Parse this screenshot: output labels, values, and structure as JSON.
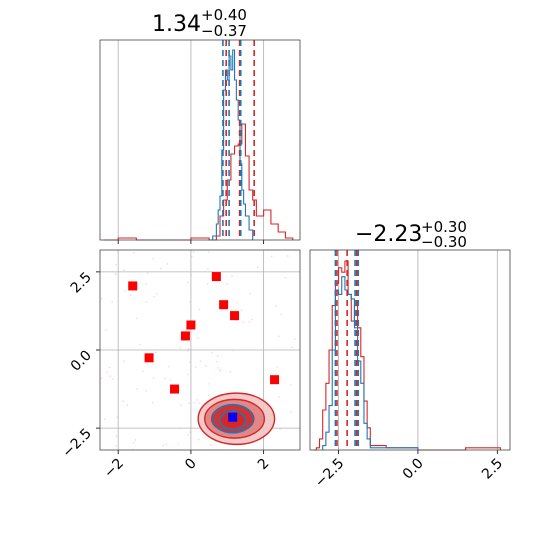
{
  "chart_data": {
    "type": "corner",
    "parameters": 2,
    "colors": {
      "primary": "#d62728",
      "secondary": "#1f77b4",
      "marker_red": "#ff0000",
      "marker_blue": "#0000ff",
      "grid": "#b0b0b0",
      "fill_light": "#f2c4c4",
      "fill_mid": "#e07f80",
      "fill_dark": "#d62728"
    },
    "panels": [
      {
        "id": "hist_param1",
        "type": "histogram",
        "title": {
          "value": "1.34",
          "upper": "+0.40",
          "lower": "−0.37"
        },
        "xlim": [
          -2.5,
          3.0
        ],
        "grid_x": [
          -2,
          0,
          2
        ],
        "quantile_lines_red": [
          0.97,
          1.34,
          1.74
        ],
        "quantile_lines_blue": [
          0.88,
          1.05,
          1.37
        ],
        "series": [
          {
            "color": "primary",
            "x": [
              -2.4,
              -2.0,
              -1.5,
              -1.0,
              -0.5,
              0.0,
              0.2,
              0.5,
              0.7,
              0.8,
              0.9,
              1.0,
              1.1,
              1.2,
              1.3,
              1.4,
              1.5,
              1.6,
              1.7,
              1.8,
              2.0,
              2.2,
              2.4,
              2.6,
              2.8
            ],
            "y": [
              0.0,
              0.01,
              0.0,
              0.0,
              0.0,
              0.01,
              0.01,
              0.0,
              0.02,
              0.12,
              0.2,
              0.3,
              0.43,
              0.47,
              0.48,
              0.58,
              0.42,
              0.25,
              0.2,
              0.12,
              0.15,
              0.08,
              0.04,
              0.01,
              0.0
            ]
          },
          {
            "color": "secondary",
            "x": [
              0.5,
              0.6,
              0.7,
              0.75,
              0.8,
              0.85,
              0.9,
              0.95,
              1.0,
              1.05,
              1.1,
              1.15,
              1.2,
              1.25,
              1.3,
              1.35,
              1.4,
              1.45,
              1.5,
              1.6,
              1.7
            ],
            "y": [
              0.0,
              0.02,
              0.08,
              0.15,
              0.22,
              0.45,
              0.75,
              0.85,
              0.8,
              0.92,
              0.85,
              0.95,
              0.8,
              0.7,
              0.6,
              0.38,
              0.25,
              0.18,
              0.12,
              0.05,
              0.01
            ]
          }
        ]
      },
      {
        "id": "hist_param2",
        "type": "histogram",
        "title": {
          "value": "−2.23",
          "upper": "+0.30",
          "lower": "−0.30"
        },
        "xlim": [
          -3.4,
          2.9
        ],
        "grid_x": [
          -2.5,
          0.0,
          2.5
        ],
        "xtick_labels": [
          "−2.5",
          "0.0",
          "2.5"
        ],
        "quantile_lines_red": [
          -2.55,
          -2.23,
          -1.93
        ],
        "quantile_lines_blue": [
          -2.6,
          -1.98,
          -1.88
        ],
        "series": [
          {
            "color": "primary",
            "x": [
              -3.3,
              -3.2,
              -3.1,
              -3.0,
              -2.9,
              -2.8,
              -2.7,
              -2.6,
              -2.5,
              -2.4,
              -2.3,
              -2.2,
              -2.1,
              -2.0,
              -1.9,
              -1.8,
              -1.7,
              -1.6,
              -1.5,
              -1.0,
              -0.5,
              0.0,
              1.5,
              2.0,
              2.6
            ],
            "y": [
              0.0,
              0.01,
              0.05,
              0.18,
              0.3,
              0.45,
              0.65,
              0.75,
              0.82,
              0.8,
              0.85,
              0.7,
              0.58,
              0.65,
              0.55,
              0.42,
              0.22,
              0.1,
              0.02,
              0.01,
              0.01,
              0.0,
              0.01,
              0.01,
              0.0
            ]
          },
          {
            "color": "secondary",
            "x": [
              -3.0,
              -2.9,
              -2.8,
              -2.7,
              -2.6,
              -2.5,
              -2.4,
              -2.3,
              -2.2,
              -2.1,
              -2.0,
              -1.9,
              -1.8,
              -1.7,
              -1.6,
              -1.5,
              -1.0,
              0.0
            ],
            "y": [
              0.02,
              0.08,
              0.2,
              0.45,
              0.72,
              0.7,
              0.78,
              0.72,
              0.7,
              0.68,
              0.55,
              0.4,
              0.3,
              0.12,
              0.05,
              0.01,
              0.01,
              0.0
            ]
          }
        ]
      },
      {
        "id": "scatter_2d",
        "type": "scatter",
        "xlim": [
          -2.5,
          3.0
        ],
        "ylim": [
          -3.2,
          3.2
        ],
        "grid_x": [
          -2,
          0,
          2
        ],
        "grid_y": [
          -2.5,
          0.0,
          2.5
        ],
        "xtick_labels": [
          "−2",
          "0",
          "2"
        ],
        "ytick_labels": [
          "−2.5",
          "0.0",
          "2.5"
        ],
        "red_markers": [
          {
            "x": -1.6,
            "y": 2.05
          },
          {
            "x": 0.7,
            "y": 2.35
          },
          {
            "x": 0.9,
            "y": 1.45
          },
          {
            "x": 1.2,
            "y": 1.1
          },
          {
            "x": 0.0,
            "y": 0.8
          },
          {
            "x": -0.15,
            "y": 0.45
          },
          {
            "x": -1.15,
            "y": -0.25
          },
          {
            "x": -0.45,
            "y": -1.25
          },
          {
            "x": 2.3,
            "y": -0.95
          }
        ],
        "blue_marker": {
          "x": 1.15,
          "y": -2.15
        },
        "contours_red": [
          {
            "cx": 1.25,
            "cy": -2.2,
            "rx": 1.05,
            "ry": 0.82
          },
          {
            "cx": 1.2,
            "cy": -2.2,
            "rx": 0.82,
            "ry": 0.62
          },
          {
            "cx": 1.15,
            "cy": -2.2,
            "rx": 0.58,
            "ry": 0.44
          },
          {
            "cx": 1.15,
            "cy": -2.2,
            "rx": 0.35,
            "ry": 0.26
          }
        ],
        "contours_blue": [
          {
            "cx": 1.15,
            "cy": -2.2,
            "rx": 0.55,
            "ry": 0.45
          },
          {
            "cx": 1.15,
            "cy": -2.25,
            "rx": 0.35,
            "ry": 0.3
          }
        ]
      }
    ]
  }
}
